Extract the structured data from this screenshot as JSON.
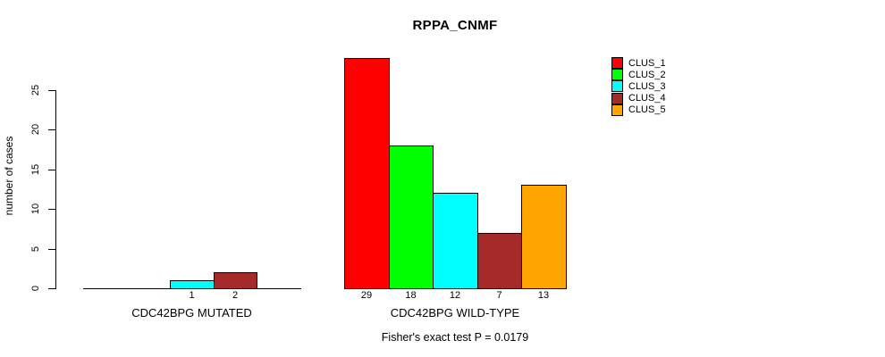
{
  "chart_data": {
    "type": "bar",
    "title": "RPPA_CNMF",
    "ylabel": "number of cases",
    "xlabel": "",
    "annotation": "Fisher's exact test P = 0.0179",
    "yticks": [
      0,
      5,
      10,
      15,
      20,
      25
    ],
    "ylim": [
      0,
      29
    ],
    "grid": false,
    "categories": [
      "CLUS_1",
      "CLUS_2",
      "CLUS_3",
      "CLUS_4",
      "CLUS_5"
    ],
    "series_colors": [
      "#FF0000",
      "#00FF00",
      "#00FFFF",
      "#A52A2A",
      "#FFA500"
    ],
    "groups": [
      {
        "label": "CDC42BPG MUTATED",
        "values": [
          0,
          0,
          1,
          2,
          0
        ],
        "bar_labels": [
          "",
          "",
          "1",
          "2",
          ""
        ]
      },
      {
        "label": "CDC42BPG WILD-TYPE",
        "values": [
          29,
          18,
          12,
          7,
          13
        ],
        "bar_labels": [
          "29",
          "18",
          "12",
          "7",
          "13"
        ]
      }
    ],
    "legend": {
      "position": "top-right",
      "entries": [
        {
          "label": "CLUS_1",
          "color": "#FF0000"
        },
        {
          "label": "CLUS_2",
          "color": "#00FF00"
        },
        {
          "label": "CLUS_3",
          "color": "#00FFFF"
        },
        {
          "label": "CLUS_4",
          "color": "#A52A2A"
        },
        {
          "label": "CLUS_5",
          "color": "#FFA500"
        }
      ]
    }
  }
}
